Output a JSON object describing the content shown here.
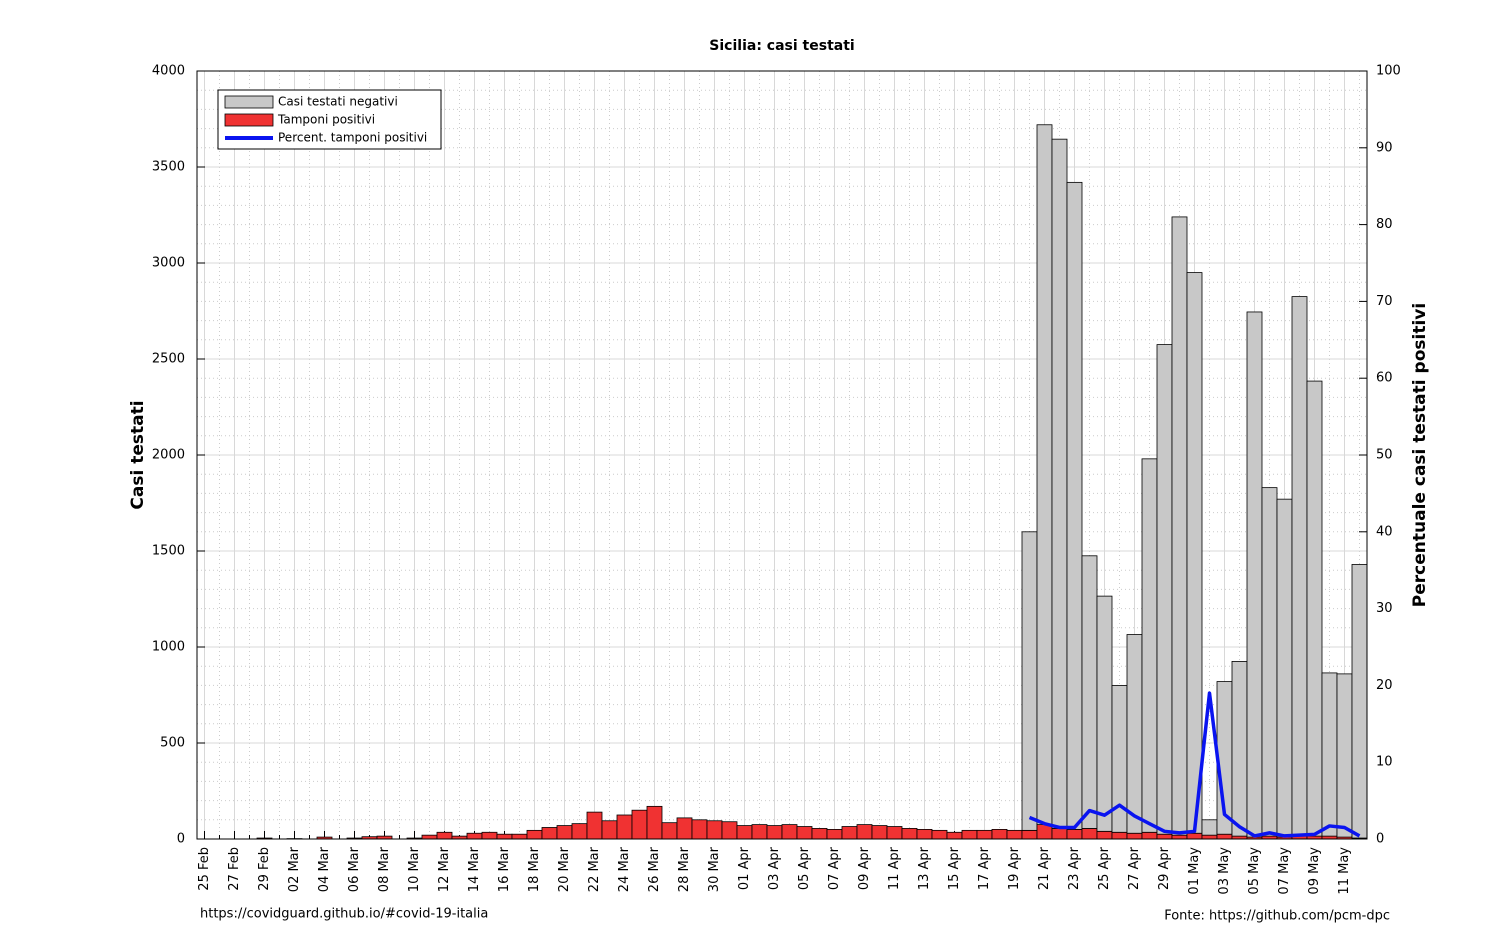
{
  "chart_data": {
    "type": "bar",
    "title": "Sicilia: casi testati",
    "ylabel": "Casi testati",
    "y2label": "Percentuale casi testati positivi",
    "footer_left": "https://covidguard.github.io/#covid-19-italia",
    "footer_right": "Fonte: https://github.com/pcm-dpc",
    "categories": [
      "25 Feb",
      null,
      "27 Feb",
      null,
      "29 Feb",
      null,
      "02 Mar",
      null,
      "04 Mar",
      null,
      "06 Mar",
      null,
      "08 Mar",
      null,
      "10 Mar",
      null,
      "12 Mar",
      null,
      "14 Mar",
      null,
      "16 Mar",
      null,
      "18 Mar",
      null,
      "20 Mar",
      null,
      "22 Mar",
      null,
      "24 Mar",
      null,
      "26 Mar",
      null,
      "28 Mar",
      null,
      "30 Mar",
      null,
      "01 Apr",
      null,
      "03 Apr",
      null,
      "05 Apr",
      null,
      "07 Apr",
      null,
      "09 Apr",
      null,
      "11 Apr",
      null,
      "13 Apr",
      null,
      "15 Apr",
      null,
      "17 Apr",
      null,
      "19 Apr",
      null,
      "21 Apr",
      null,
      "23 Apr",
      null,
      "25 Apr",
      null,
      "27 Apr",
      null,
      "29 Apr",
      null,
      "01 May",
      null,
      "03 May",
      null,
      "05 May",
      null,
      "07 May",
      null,
      "09 May",
      null,
      "11 May",
      null
    ],
    "series": [
      {
        "name": "Casi testati negativi",
        "color": "#c8c8c8",
        "values": [
          0,
          0,
          0,
          0,
          0,
          0,
          0,
          0,
          0,
          0,
          0,
          0,
          0,
          0,
          0,
          0,
          0,
          0,
          0,
          0,
          0,
          0,
          0,
          0,
          0,
          0,
          0,
          0,
          0,
          0,
          0,
          0,
          0,
          0,
          0,
          0,
          0,
          0,
          0,
          0,
          0,
          0,
          0,
          0,
          0,
          0,
          0,
          0,
          0,
          0,
          0,
          0,
          0,
          0,
          0,
          1555,
          3645,
          3590,
          3370,
          1420,
          1225,
          765,
          1035,
          1945,
          2550,
          3220,
          2920,
          80,
          795,
          910,
          2735,
          1815,
          1760,
          2810,
          2370,
          850,
          850,
          1425
        ]
      },
      {
        "name": "Tamponi positivi",
        "color": "#f03232",
        "values": [
          0,
          0,
          0,
          0,
          5,
          0,
          2,
          0,
          10,
          0,
          5,
          12,
          15,
          0,
          5,
          20,
          35,
          15,
          30,
          35,
          25,
          25,
          45,
          60,
          70,
          80,
          140,
          95,
          125,
          150,
          170,
          85,
          110,
          100,
          95,
          90,
          70,
          75,
          70,
          75,
          65,
          55,
          50,
          65,
          75,
          70,
          65,
          55,
          50,
          45,
          35,
          45,
          45,
          50,
          45,
          45,
          75,
          55,
          50,
          55,
          40,
          35,
          30,
          35,
          25,
          20,
          30,
          20,
          25,
          15,
          10,
          15,
          10,
          15,
          15,
          15,
          10,
          5
        ]
      },
      {
        "name": "Percent. tamponi positivi",
        "color": "#0a14f0",
        "type": "line",
        "axis": "y2",
        "values": [
          null,
          null,
          null,
          null,
          null,
          null,
          null,
          null,
          null,
          null,
          null,
          null,
          null,
          null,
          null,
          null,
          null,
          null,
          null,
          null,
          null,
          null,
          null,
          null,
          null,
          null,
          null,
          null,
          null,
          null,
          null,
          null,
          null,
          null,
          null,
          null,
          null,
          null,
          null,
          null,
          null,
          null,
          null,
          null,
          null,
          null,
          null,
          null,
          null,
          null,
          null,
          null,
          null,
          null,
          null,
          2.8,
          2.0,
          1.5,
          1.5,
          3.7,
          3.1,
          4.4,
          3.0,
          2.0,
          1.0,
          0.8,
          1.0,
          19.0,
          3.2,
          1.6,
          0.4,
          0.8,
          0.4,
          0.5,
          0.6,
          1.7,
          1.5,
          0.4
        ]
      }
    ],
    "ylim": [
      0,
      4000
    ],
    "yticks": [
      0,
      500,
      1000,
      1500,
      2000,
      2500,
      3000,
      3500,
      4000
    ],
    "y2lim": [
      0,
      100
    ],
    "y2ticks": [
      0,
      10,
      20,
      30,
      40,
      50,
      60,
      70,
      80,
      90,
      100
    ],
    "grid": true,
    "legend": "upper left"
  }
}
